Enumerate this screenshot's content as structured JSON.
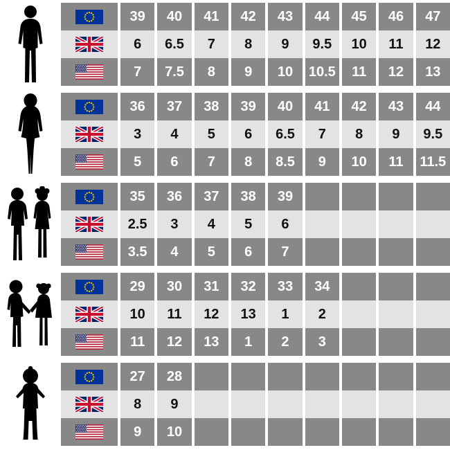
{
  "columns": 9,
  "colors": {
    "cell_dark": "#888888",
    "cell_light": "#e3e3e3",
    "background": "#ffffff",
    "text_on_dark": "#ffffff",
    "text_on_light": "#111111",
    "silhouette": "#000000",
    "eu_flag_blue": "#003399",
    "eu_star_yellow": "#ffcc00",
    "uk_blue": "#012169",
    "uk_red": "#c8102e",
    "flag_white": "#ffffff",
    "us_stripe_red": "#b22234",
    "us_canton_blue": "#3c3b6e"
  },
  "sections": [
    {
      "group": "men",
      "silhouette": "man-silhouette",
      "rows": [
        {
          "region": "EU",
          "flag_icon": "eu-flag-icon",
          "values": [
            "39",
            "40",
            "41",
            "42",
            "43",
            "44",
            "45",
            "46",
            "47"
          ]
        },
        {
          "region": "UK",
          "flag_icon": "uk-flag-icon",
          "values": [
            "6",
            "6.5",
            "7",
            "8",
            "9",
            "9.5",
            "10",
            "11",
            "12"
          ]
        },
        {
          "region": "US",
          "flag_icon": "us-flag-icon",
          "values": [
            "7",
            "7.5",
            "8",
            "9",
            "10",
            "10.5",
            "11",
            "12",
            "13"
          ]
        }
      ]
    },
    {
      "group": "women",
      "silhouette": "woman-silhouette",
      "rows": [
        {
          "region": "EU",
          "flag_icon": "eu-flag-icon",
          "values": [
            "36",
            "37",
            "38",
            "39",
            "40",
            "41",
            "42",
            "43",
            "44"
          ]
        },
        {
          "region": "UK",
          "flag_icon": "uk-flag-icon",
          "values": [
            "3",
            "4",
            "5",
            "6",
            "6.5",
            "7",
            "8",
            "9",
            "9.5"
          ]
        },
        {
          "region": "US",
          "flag_icon": "us-flag-icon",
          "values": [
            "5",
            "6",
            "7",
            "8",
            "8.5",
            "9",
            "10",
            "11",
            "11.5"
          ]
        }
      ]
    },
    {
      "group": "kids",
      "silhouette": "kids-silhouette",
      "rows": [
        {
          "region": "EU",
          "flag_icon": "eu-flag-icon",
          "values": [
            "35",
            "36",
            "37",
            "38",
            "39",
            "",
            "",
            "",
            ""
          ]
        },
        {
          "region": "UK",
          "flag_icon": "uk-flag-icon",
          "values": [
            "2.5",
            "3",
            "4",
            "5",
            "6",
            "",
            "",
            "",
            ""
          ]
        },
        {
          "region": "US",
          "flag_icon": "us-flag-icon",
          "values": [
            "3.5",
            "4",
            "5",
            "6",
            "7",
            "",
            "",
            "",
            ""
          ]
        }
      ]
    },
    {
      "group": "small-kids",
      "silhouette": "toddlers-holding-hands-silhouette",
      "rows": [
        {
          "region": "EU",
          "flag_icon": "eu-flag-icon",
          "values": [
            "29",
            "30",
            "31",
            "32",
            "33",
            "34",
            "",
            "",
            ""
          ]
        },
        {
          "region": "UK",
          "flag_icon": "uk-flag-icon",
          "values": [
            "10",
            "11",
            "12",
            "13",
            "1",
            "2",
            "",
            "",
            ""
          ]
        },
        {
          "region": "US",
          "flag_icon": "us-flag-icon",
          "values": [
            "11",
            "12",
            "13",
            "1",
            "2",
            "3",
            "",
            "",
            ""
          ]
        }
      ]
    },
    {
      "group": "baby",
      "silhouette": "baby-silhouette",
      "rows": [
        {
          "region": "EU",
          "flag_icon": "eu-flag-icon",
          "values": [
            "27",
            "28",
            "",
            "",
            "",
            "",
            "",
            "",
            ""
          ]
        },
        {
          "region": "UK",
          "flag_icon": "uk-flag-icon",
          "values": [
            "8",
            "9",
            "",
            "",
            "",
            "",
            "",
            "",
            ""
          ]
        },
        {
          "region": "US",
          "flag_icon": "us-flag-icon",
          "values": [
            "9",
            "10",
            "",
            "",
            "",
            "",
            "",
            "",
            ""
          ]
        }
      ]
    }
  ]
}
